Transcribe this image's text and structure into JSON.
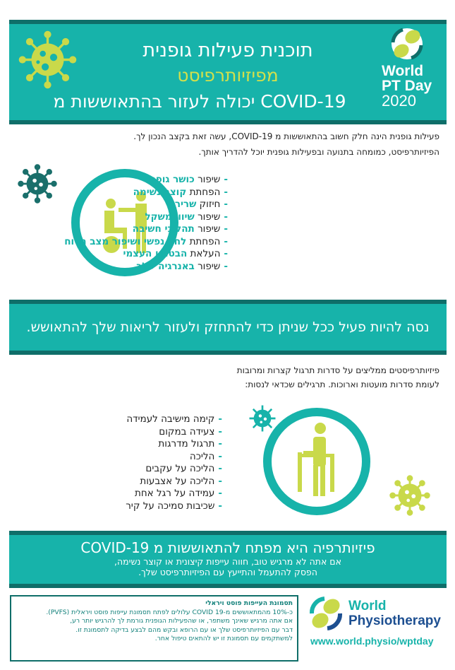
{
  "header": {
    "line1": "תוכנית פעילות גופנית",
    "line2": "מפיזיותרפיסט",
    "line3": "יכולה לעזור בהתאוששות מ COVID-19",
    "logo": {
      "world": "World",
      "pt_day": "PT Day",
      "year": "2020"
    }
  },
  "intro": [
    "פעילות גופנית הינה חלק חשוב בהתאוששות מ COVID-19, עשה זאת בקצב הנכון לך.",
    "הפיזיותרפיסט, כמומחה בתנועה ובפעילות גופנית יוכל להדריך אותך."
  ],
  "benefits": [
    {
      "verb": "שיפור",
      "topic": "כושר גופני"
    },
    {
      "verb": "הפחתת",
      "topic": "קוצר נשימה"
    },
    {
      "verb": "חיזוק",
      "topic": "שרירי"
    },
    {
      "verb": "שיפור",
      "topic": "שיווי משקל"
    },
    {
      "verb": "שיפור",
      "topic": "תהליכי חשיבה"
    },
    {
      "verb": "הפחתת",
      "topic": "לחץ נפשי ושיפור מצב הרוח"
    },
    {
      "verb": "העלאת",
      "topic": "הבטחון העצמי"
    },
    {
      "verb": "שיפור",
      "topic": "באנרגיה שלך"
    }
  ],
  "banner": "נסה להיות פעיל ככל שניתן כדי להתחזק ולעזור לריאות שלך להתאושש.",
  "exercise_intro": [
    "פיזיותרפיסטים ממליצים על סדרות תרגול קצרות ומרובות",
    "לעומת סדרות מועטות וארוכות. תרגילים שכדאי לנסות:"
  ],
  "exercises": [
    "קימה מישיבה לעמידה",
    "צעידה במקום",
    "תרגול מדרגות",
    "הליכה",
    "הליכה על עקבים",
    "הליכה על אצבעות",
    "עמידה על רגל אחת",
    "שכיבות סמיכה על קיר"
  ],
  "key": {
    "title": "פיזיותרפיה היא מפתח להתאוששות מ COVID-19",
    "sub": [
      "אם אתה לא מרגיש טוב, חווה עייפות קיצונית או קוצר נשימה,",
      "הפסק להתעמל והתייעץ עם הפיזיותרפיסט שלך."
    ]
  },
  "note": {
    "title": "תסמונת העייפות פוסט ויראלי",
    "lines": [
      "כ-10% מהמתאוששים מ-COVID 19 עלולים לפתח תסמונת עייפות פוסט ויראלית (PVFS).",
      "אם אתה מרגיש שאינך משתפר, או שהפעילות הגופנית גורמת לך להרגיש יותר רע,",
      "דבר עם הפיזיותרפיסט שלך או עם הרופא ובקש מהם לבצע בדיקה לתסמונת זו.",
      "למשתקמים עם תסמונת זו יש להתאים טיפול אחר."
    ]
  },
  "footer_logo": {
    "world": "World",
    "physio": "Physiotherapy",
    "url": "www.world.physio/wptday"
  },
  "colors": {
    "teal": "#17b3aa",
    "dark_teal": "#0f6e69",
    "lime": "#c9d94a",
    "navy": "#1d4f91"
  }
}
